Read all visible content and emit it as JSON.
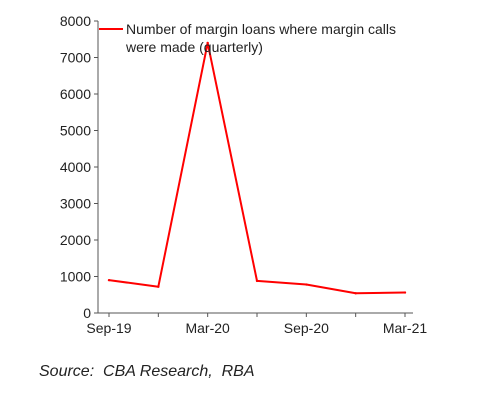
{
  "chart_data": {
    "type": "line",
    "title": "",
    "xlabel": "",
    "ylabel": "",
    "ylim": [
      0,
      8000
    ],
    "yticks": [
      0,
      1000,
      2000,
      3000,
      4000,
      5000,
      6000,
      7000,
      8000
    ],
    "x": [
      "Sep-19",
      "Dec-19",
      "Mar-20",
      "Jun-20",
      "Sep-20",
      "Dec-20",
      "Mar-21"
    ],
    "xtick_labels": [
      "Sep-19",
      "Mar-20",
      "Sep-20",
      "Mar-21"
    ],
    "series": [
      {
        "name": "Number of margin loans where margin calls were made (quarterly)",
        "values": [
          900,
          720,
          7400,
          880,
          780,
          540,
          560
        ],
        "color": "#ff0000"
      }
    ],
    "grid": false,
    "legend_position": "top"
  },
  "source_note": "Source:  CBA Research,  RBA"
}
